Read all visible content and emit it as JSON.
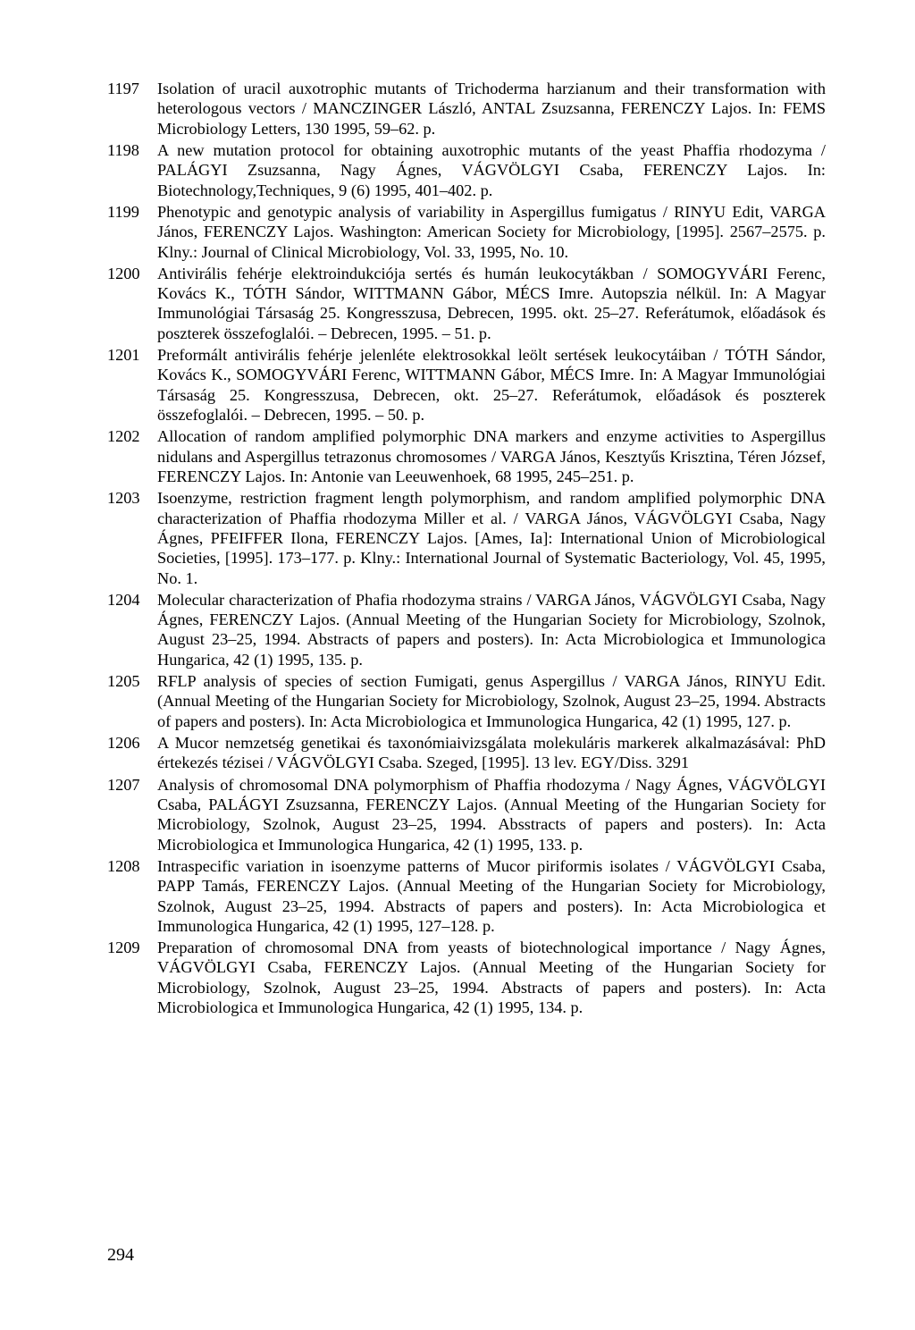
{
  "page_number": "294",
  "entries": [
    {
      "num": "1197",
      "text": "Isolation of uracil auxotrophic mutants of Trichoderma harzianum and their transformation with heterologous vectors / MANCZINGER László, ANTAL Zsuzsanna, FERENCZY Lajos. In: FEMS Microbiology Letters, 130 1995, 59–62. p."
    },
    {
      "num": "1198",
      "text": "A new mutation protocol for obtaining auxotrophic mutants of the yeast Phaffia rhodozyma / PALÁGYI Zsuzsanna, Nagy Ágnes, VÁGVÖLGYI Csaba, FERENCZY Lajos. In: Biotechnology,Techniques, 9 (6) 1995, 401–402. p."
    },
    {
      "num": "1199",
      "text": "Phenotypic and genotypic analysis of variability in Aspergillus fumigatus / RINYU Edit, VARGA János, FERENCZY Lajos. Washington: American Society for Microbiology, [1995]. 2567–2575. p. Klny.: Journal of Clinical Microbiology, Vol. 33, 1995, No. 10."
    },
    {
      "num": "1200",
      "text": "Antivirális fehérje elektroindukciója sertés és humán leukocytákban / SOMOGYVÁRI Ferenc, Kovács K., TÓTH Sándor, WITTMANN Gábor, MÉCS Imre. Autopszia nélkül. In: A Magyar Immunológiai Társaság 25. Kongresszusa, Debrecen, 1995. okt. 25–27. Referátumok, előadások és poszterek összefoglalói. – Debrecen, 1995. – 51. p."
    },
    {
      "num": "1201",
      "text": "Preformált antivirális fehérje jelenléte elektrosokkal leölt sertések leukocytáiban / TÓTH Sándor, Kovács K., SOMOGYVÁRI Ferenc, WITTMANN Gábor, MÉCS Imre. In: A Magyar Immunológiai Társaság 25. Kongresszusa, Debrecen, okt. 25–27. Referátumok, előadások és poszterek összefoglalói. – Debrecen, 1995. – 50. p."
    },
    {
      "num": "1202",
      "text": "Allocation of random amplified polymorphic DNA markers and enzyme activities to Aspergillus nidulans and Aspergillus tetrazonus chromosomes / VARGA János, Kesztyűs Krisztina, Téren József, FERENCZY Lajos. In: Antonie van Leeuwenhoek, 68 1995, 245–251. p."
    },
    {
      "num": "1203",
      "text": "Isoenzyme, restriction fragment length polymorphism, and random amplified polymorphic DNA characterization of Phaffia rhodozyma Miller et al. / VARGA János, VÁGVÖLGYI Csaba, Nagy Ágnes, PFEIFFER Ilona, FERENCZY Lajos. [Ames, Ia]: International Union of Microbiological Societies, [1995]. 173–177. p. Klny.: International Journal of Systematic Bacteriology, Vol. 45, 1995, No. 1."
    },
    {
      "num": "1204",
      "text": "Molecular characterization of Phafia rhodozyma strains / VARGA János, VÁGVÖLGYI Csaba, Nagy Ágnes, FERENCZY Lajos. (Annual Meeting of the Hungarian Society for Microbiology, Szolnok, August 23–25, 1994. Abstracts of papers and posters). In: Acta Microbiologica et Immunologica Hungarica, 42 (1) 1995, 135. p."
    },
    {
      "num": "1205",
      "text": "RFLP analysis of species of section Fumigati, genus Aspergillus / VARGA János, RINYU Edit. (Annual Meeting of the Hungarian Society for Microbiology, Szolnok, August 23–25, 1994. Abstracts of papers and posters). In: Acta Microbiologica et Immunologica Hungarica, 42 (1) 1995, 127. p."
    },
    {
      "num": "1206",
      "text": "A Mucor nemzetség genetikai és taxonómiaivizsgálata molekuláris markerek alkalmazásával: PhD értekezés tézisei / VÁGVÖLGYI Csaba. Szeged, [1995]. 13 lev. EGY/Diss. 3291"
    },
    {
      "num": "1207",
      "text": "Analysis of chromosomal DNA polymorphism of Phaffia rhodozyma / Nagy Ágnes, VÁGVÖLGYI Csaba, PALÁGYI Zsuzsanna, FERENCZY Lajos. (Annual Meeting of the Hungarian Society for Microbiology, Szolnok, August 23–25, 1994. Absstracts of papers and posters). In: Acta Microbiologica et Immunologica Hungarica, 42 (1) 1995, 133. p."
    },
    {
      "num": "1208",
      "text": "Intraspecific variation in isoenzyme patterns of Mucor piriformis isolates / VÁGVÖLGYI Csaba, PAPP Tamás, FERENCZY Lajos. (Annual Meeting of the Hungarian Society for Microbiology, Szolnok, August 23–25, 1994. Abstracts of papers and posters). In: Acta Microbiologica et Immunologica Hungarica, 42 (1) 1995, 127–128. p."
    },
    {
      "num": "1209",
      "text": "Preparation of chromosomal DNA from yeasts of biotechnological importance / Nagy Ágnes, VÁGVÖLGYI Csaba, FERENCZY Lajos. (Annual Meeting of the Hungarian Society for Microbiology, Szolnok, August 23–25, 1994. Abstracts of papers and posters). In: Acta Microbiologica et Immunologica Hungarica, 42 (1) 1995, 134. p."
    }
  ]
}
